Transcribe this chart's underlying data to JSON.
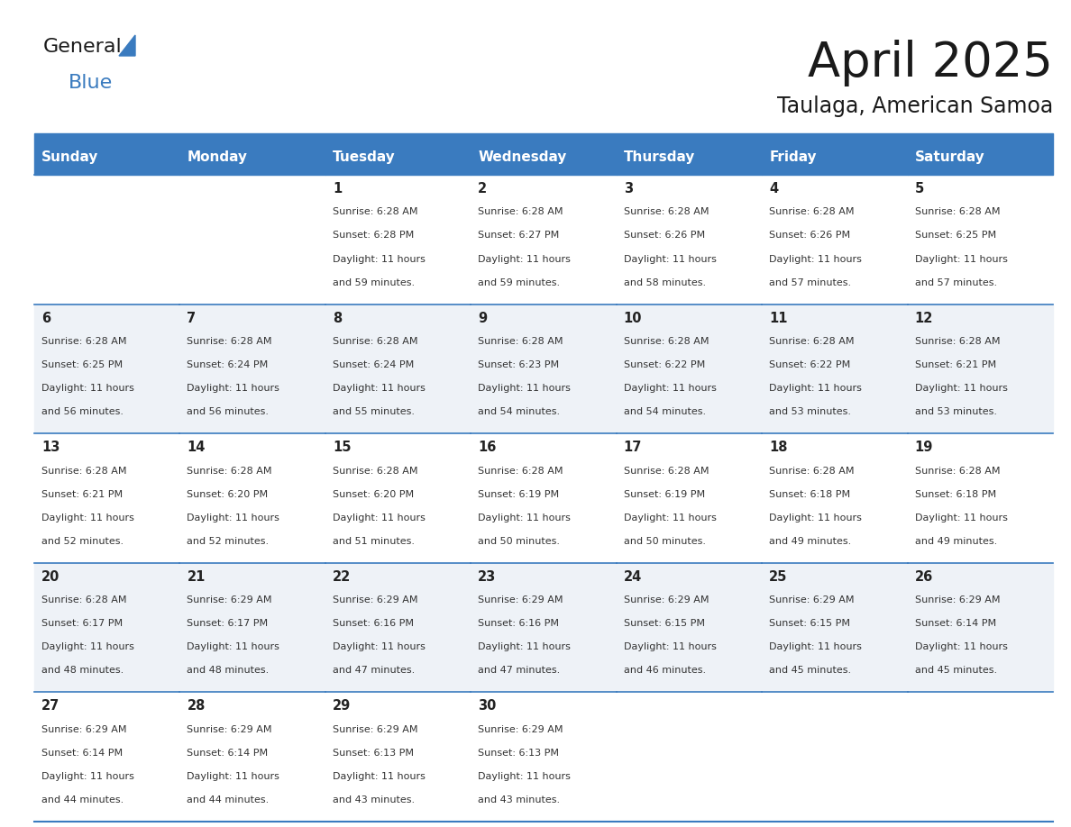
{
  "title": "April 2025",
  "subtitle": "Taulaga, American Samoa",
  "header_bg_color": "#3a7bbf",
  "header_text_color": "#ffffff",
  "cell_bg_even": "#eef2f7",
  "cell_bg_odd": "#ffffff",
  "cell_border_color": "#3a7bbf",
  "text_color": "#333333",
  "day_num_color": "#222222",
  "days_of_week": [
    "Sunday",
    "Monday",
    "Tuesday",
    "Wednesday",
    "Thursday",
    "Friday",
    "Saturday"
  ],
  "calendar": [
    [
      {
        "day": "",
        "sunrise": "",
        "sunset": "",
        "daylight1": "",
        "daylight2": ""
      },
      {
        "day": "",
        "sunrise": "",
        "sunset": "",
        "daylight1": "",
        "daylight2": ""
      },
      {
        "day": "1",
        "sunrise": "Sunrise: 6:28 AM",
        "sunset": "Sunset: 6:28 PM",
        "daylight1": "Daylight: 11 hours",
        "daylight2": "and 59 minutes."
      },
      {
        "day": "2",
        "sunrise": "Sunrise: 6:28 AM",
        "sunset": "Sunset: 6:27 PM",
        "daylight1": "Daylight: 11 hours",
        "daylight2": "and 59 minutes."
      },
      {
        "day": "3",
        "sunrise": "Sunrise: 6:28 AM",
        "sunset": "Sunset: 6:26 PM",
        "daylight1": "Daylight: 11 hours",
        "daylight2": "and 58 minutes."
      },
      {
        "day": "4",
        "sunrise": "Sunrise: 6:28 AM",
        "sunset": "Sunset: 6:26 PM",
        "daylight1": "Daylight: 11 hours",
        "daylight2": "and 57 minutes."
      },
      {
        "day": "5",
        "sunrise": "Sunrise: 6:28 AM",
        "sunset": "Sunset: 6:25 PM",
        "daylight1": "Daylight: 11 hours",
        "daylight2": "and 57 minutes."
      }
    ],
    [
      {
        "day": "6",
        "sunrise": "Sunrise: 6:28 AM",
        "sunset": "Sunset: 6:25 PM",
        "daylight1": "Daylight: 11 hours",
        "daylight2": "and 56 minutes."
      },
      {
        "day": "7",
        "sunrise": "Sunrise: 6:28 AM",
        "sunset": "Sunset: 6:24 PM",
        "daylight1": "Daylight: 11 hours",
        "daylight2": "and 56 minutes."
      },
      {
        "day": "8",
        "sunrise": "Sunrise: 6:28 AM",
        "sunset": "Sunset: 6:24 PM",
        "daylight1": "Daylight: 11 hours",
        "daylight2": "and 55 minutes."
      },
      {
        "day": "9",
        "sunrise": "Sunrise: 6:28 AM",
        "sunset": "Sunset: 6:23 PM",
        "daylight1": "Daylight: 11 hours",
        "daylight2": "and 54 minutes."
      },
      {
        "day": "10",
        "sunrise": "Sunrise: 6:28 AM",
        "sunset": "Sunset: 6:22 PM",
        "daylight1": "Daylight: 11 hours",
        "daylight2": "and 54 minutes."
      },
      {
        "day": "11",
        "sunrise": "Sunrise: 6:28 AM",
        "sunset": "Sunset: 6:22 PM",
        "daylight1": "Daylight: 11 hours",
        "daylight2": "and 53 minutes."
      },
      {
        "day": "12",
        "sunrise": "Sunrise: 6:28 AM",
        "sunset": "Sunset: 6:21 PM",
        "daylight1": "Daylight: 11 hours",
        "daylight2": "and 53 minutes."
      }
    ],
    [
      {
        "day": "13",
        "sunrise": "Sunrise: 6:28 AM",
        "sunset": "Sunset: 6:21 PM",
        "daylight1": "Daylight: 11 hours",
        "daylight2": "and 52 minutes."
      },
      {
        "day": "14",
        "sunrise": "Sunrise: 6:28 AM",
        "sunset": "Sunset: 6:20 PM",
        "daylight1": "Daylight: 11 hours",
        "daylight2": "and 52 minutes."
      },
      {
        "day": "15",
        "sunrise": "Sunrise: 6:28 AM",
        "sunset": "Sunset: 6:20 PM",
        "daylight1": "Daylight: 11 hours",
        "daylight2": "and 51 minutes."
      },
      {
        "day": "16",
        "sunrise": "Sunrise: 6:28 AM",
        "sunset": "Sunset: 6:19 PM",
        "daylight1": "Daylight: 11 hours",
        "daylight2": "and 50 minutes."
      },
      {
        "day": "17",
        "sunrise": "Sunrise: 6:28 AM",
        "sunset": "Sunset: 6:19 PM",
        "daylight1": "Daylight: 11 hours",
        "daylight2": "and 50 minutes."
      },
      {
        "day": "18",
        "sunrise": "Sunrise: 6:28 AM",
        "sunset": "Sunset: 6:18 PM",
        "daylight1": "Daylight: 11 hours",
        "daylight2": "and 49 minutes."
      },
      {
        "day": "19",
        "sunrise": "Sunrise: 6:28 AM",
        "sunset": "Sunset: 6:18 PM",
        "daylight1": "Daylight: 11 hours",
        "daylight2": "and 49 minutes."
      }
    ],
    [
      {
        "day": "20",
        "sunrise": "Sunrise: 6:28 AM",
        "sunset": "Sunset: 6:17 PM",
        "daylight1": "Daylight: 11 hours",
        "daylight2": "and 48 minutes."
      },
      {
        "day": "21",
        "sunrise": "Sunrise: 6:29 AM",
        "sunset": "Sunset: 6:17 PM",
        "daylight1": "Daylight: 11 hours",
        "daylight2": "and 48 minutes."
      },
      {
        "day": "22",
        "sunrise": "Sunrise: 6:29 AM",
        "sunset": "Sunset: 6:16 PM",
        "daylight1": "Daylight: 11 hours",
        "daylight2": "and 47 minutes."
      },
      {
        "day": "23",
        "sunrise": "Sunrise: 6:29 AM",
        "sunset": "Sunset: 6:16 PM",
        "daylight1": "Daylight: 11 hours",
        "daylight2": "and 47 minutes."
      },
      {
        "day": "24",
        "sunrise": "Sunrise: 6:29 AM",
        "sunset": "Sunset: 6:15 PM",
        "daylight1": "Daylight: 11 hours",
        "daylight2": "and 46 minutes."
      },
      {
        "day": "25",
        "sunrise": "Sunrise: 6:29 AM",
        "sunset": "Sunset: 6:15 PM",
        "daylight1": "Daylight: 11 hours",
        "daylight2": "and 45 minutes."
      },
      {
        "day": "26",
        "sunrise": "Sunrise: 6:29 AM",
        "sunset": "Sunset: 6:14 PM",
        "daylight1": "Daylight: 11 hours",
        "daylight2": "and 45 minutes."
      }
    ],
    [
      {
        "day": "27",
        "sunrise": "Sunrise: 6:29 AM",
        "sunset": "Sunset: 6:14 PM",
        "daylight1": "Daylight: 11 hours",
        "daylight2": "and 44 minutes."
      },
      {
        "day": "28",
        "sunrise": "Sunrise: 6:29 AM",
        "sunset": "Sunset: 6:14 PM",
        "daylight1": "Daylight: 11 hours",
        "daylight2": "and 44 minutes."
      },
      {
        "day": "29",
        "sunrise": "Sunrise: 6:29 AM",
        "sunset": "Sunset: 6:13 PM",
        "daylight1": "Daylight: 11 hours",
        "daylight2": "and 43 minutes."
      },
      {
        "day": "30",
        "sunrise": "Sunrise: 6:29 AM",
        "sunset": "Sunset: 6:13 PM",
        "daylight1": "Daylight: 11 hours",
        "daylight2": "and 43 minutes."
      },
      {
        "day": "",
        "sunrise": "",
        "sunset": "",
        "daylight1": "",
        "daylight2": ""
      },
      {
        "day": "",
        "sunrise": "",
        "sunset": "",
        "daylight1": "",
        "daylight2": ""
      },
      {
        "day": "",
        "sunrise": "",
        "sunset": "",
        "daylight1": "",
        "daylight2": ""
      }
    ]
  ]
}
